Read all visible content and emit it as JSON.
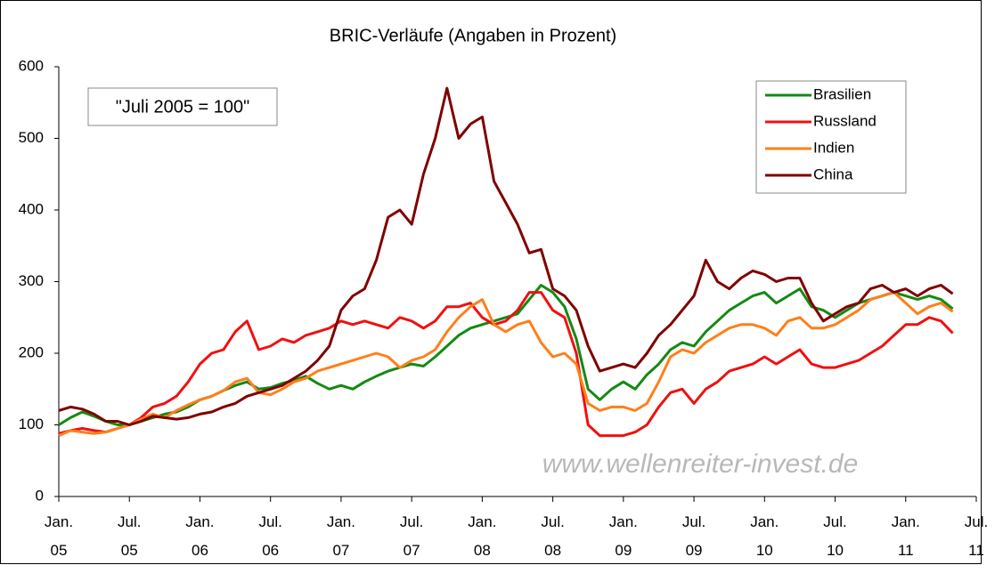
{
  "chart_data": {
    "type": "line",
    "title": "BRIC-Verläufe (Angaben in Prozent)",
    "annotations": [
      "\"Juli 2005 = 100\"",
      "www.wellenreiter-invest.de"
    ],
    "categories": [
      "Jan.\n05",
      null,
      null,
      null,
      null,
      null,
      "Jul.\n05",
      null,
      null,
      null,
      null,
      null,
      "Jan.\n06",
      null,
      null,
      null,
      null,
      null,
      "Jul.\n06",
      null,
      null,
      null,
      null,
      null,
      "Jan.\n07",
      null,
      null,
      null,
      null,
      null,
      "Jul.\n07",
      null,
      null,
      null,
      null,
      null,
      "Jan.\n08",
      null,
      null,
      null,
      null,
      null,
      "Jul.\n08",
      null,
      null,
      null,
      null,
      null,
      "Jan.\n09",
      null,
      null,
      null,
      null,
      null,
      "Jul.\n09",
      null,
      null,
      null,
      null,
      null,
      "Jan.\n10",
      null,
      null,
      null,
      null,
      null,
      "Jul.\n10",
      null,
      null,
      null,
      null,
      null,
      "Jan.\n11",
      null,
      null,
      null,
      null,
      null,
      "Jul.\n11"
    ],
    "series": [
      {
        "name": "Brasilien",
        "color": "#138a13",
        "values": [
          100,
          110,
          118,
          112,
          105,
          100,
          100,
          105,
          110,
          115,
          118,
          125,
          135,
          140,
          148,
          155,
          160,
          150,
          152,
          158,
          162,
          168,
          158,
          150,
          155,
          150,
          160,
          168,
          175,
          180,
          185,
          182,
          195,
          210,
          225,
          235,
          240,
          245,
          250,
          255,
          275,
          295,
          285,
          265,
          220,
          150,
          135,
          150,
          160,
          150,
          170,
          185,
          205,
          215,
          210,
          230,
          245,
          260,
          270,
          280,
          285,
          270,
          280,
          290,
          265,
          260,
          250,
          260,
          270,
          275,
          280,
          285,
          280,
          275,
          280,
          275,
          262,
          null,
          null
        ]
      },
      {
        "name": "Russland",
        "color": "#f01010",
        "values": [
          88,
          92,
          95,
          92,
          90,
          95,
          100,
          110,
          125,
          130,
          140,
          160,
          185,
          200,
          205,
          230,
          245,
          205,
          210,
          220,
          215,
          225,
          230,
          235,
          245,
          240,
          245,
          240,
          235,
          250,
          245,
          235,
          245,
          265,
          265,
          270,
          250,
          240,
          245,
          260,
          285,
          285,
          260,
          250,
          200,
          100,
          85,
          85,
          85,
          90,
          100,
          125,
          145,
          150,
          130,
          150,
          160,
          175,
          180,
          185,
          195,
          185,
          195,
          205,
          185,
          180,
          180,
          185,
          190,
          200,
          210,
          225,
          240,
          240,
          250,
          245,
          228,
          null,
          null
        ]
      },
      {
        "name": "Indien",
        "color": "#ff7f1a",
        "values": [
          85,
          92,
          90,
          88,
          90,
          95,
          100,
          108,
          115,
          110,
          120,
          128,
          135,
          140,
          148,
          160,
          165,
          145,
          142,
          150,
          160,
          165,
          175,
          180,
          185,
          190,
          195,
          200,
          195,
          180,
          190,
          195,
          205,
          230,
          250,
          265,
          275,
          240,
          230,
          240,
          245,
          215,
          195,
          200,
          185,
          130,
          120,
          125,
          125,
          120,
          130,
          160,
          195,
          205,
          200,
          215,
          225,
          235,
          240,
          240,
          235,
          225,
          245,
          250,
          235,
          235,
          240,
          250,
          260,
          275,
          280,
          285,
          270,
          255,
          265,
          270,
          258,
          null,
          null
        ]
      },
      {
        "name": "China",
        "color": "#800000",
        "values": [
          120,
          125,
          122,
          115,
          105,
          105,
          100,
          105,
          112,
          110,
          108,
          110,
          115,
          118,
          125,
          130,
          140,
          145,
          150,
          155,
          165,
          175,
          190,
          210,
          260,
          280,
          290,
          330,
          390,
          400,
          380,
          450,
          500,
          570,
          500,
          520,
          530,
          440,
          410,
          380,
          340,
          345,
          290,
          280,
          260,
          210,
          175,
          180,
          185,
          180,
          200,
          225,
          240,
          260,
          280,
          330,
          300,
          290,
          305,
          315,
          310,
          300,
          305,
          305,
          270,
          245,
          255,
          265,
          270,
          290,
          295,
          285,
          290,
          280,
          290,
          295,
          283,
          null,
          null
        ]
      }
    ],
    "ylim": [
      0,
      600
    ],
    "yticks": [
      0,
      100,
      200,
      300,
      400,
      500,
      600
    ],
    "grid": false,
    "legend": "upper right"
  }
}
